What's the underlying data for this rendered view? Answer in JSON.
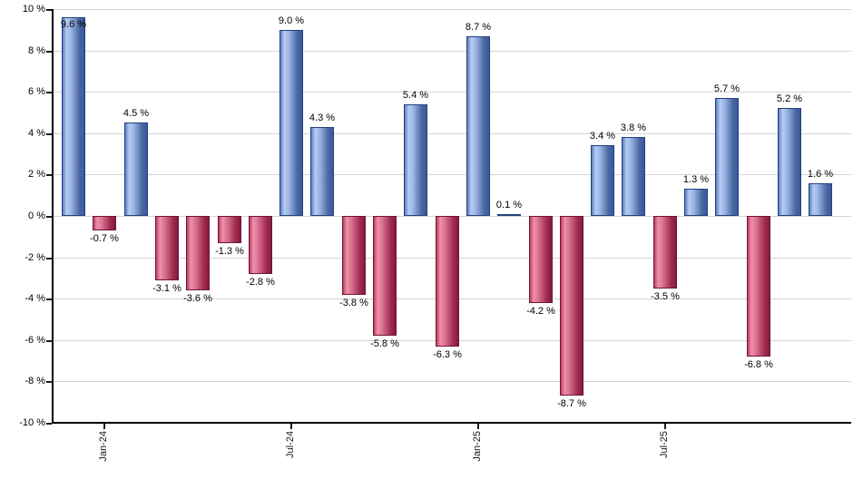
{
  "chart_data": {
    "type": "bar",
    "title": "",
    "xlabel": "",
    "ylabel": "",
    "ylim": [
      -10,
      10
    ],
    "y_tick_step": 2,
    "y_tick_labels": [
      "10 %",
      "8 %",
      "6 %",
      "4 %",
      "2 %",
      "0 %",
      "-2 %",
      "-4 %",
      "-6 %",
      "-8 %",
      "-10 %"
    ],
    "grid": "horizontal-only",
    "legend": "none",
    "values": [
      9.6,
      -0.7,
      4.5,
      -3.1,
      -3.6,
      -1.3,
      -2.8,
      9.0,
      4.3,
      -3.8,
      -5.8,
      5.4,
      -6.3,
      8.7,
      0.1,
      -4.2,
      -8.7,
      3.4,
      3.8,
      -3.5,
      1.3,
      5.7,
      -6.8,
      5.2,
      1.6
    ],
    "bar_labels": [
      "9.6 %",
      "-0.7 %",
      "4.5 %",
      "-3.1 %",
      "-3.6 %",
      "-1.3 %",
      "-2.8 %",
      "9.0 %",
      "4.3 %",
      "-3.8 %",
      "-5.8 %",
      "5.4 %",
      "-6.3 %",
      "8.7 %",
      "0.1 %",
      "-4.2 %",
      "-8.7 %",
      "3.4 %",
      "3.8 %",
      "-3.5 %",
      "1.3 %",
      "5.7 %",
      "-6.8 %",
      "5.2 %",
      "1.6 %"
    ],
    "x_ticks": [
      {
        "label": "Jan-24",
        "bar_index": 1
      },
      {
        "label": "Jul-24",
        "bar_index": 7
      },
      {
        "label": "Jan-25",
        "bar_index": 13
      },
      {
        "label": "Jul-25",
        "bar_index": 19
      }
    ],
    "colors": {
      "positive_fill_light": "#b6cbf0",
      "positive_fill_dark": "#3b58a3",
      "positive_border": "#24407e",
      "negative_fill_light": "#ec92a9",
      "negative_fill_dark": "#821c3f",
      "negative_border": "#6e1536",
      "gridline": "#d4d4d4",
      "axis": "#000000",
      "label_text": "#000000"
    }
  }
}
